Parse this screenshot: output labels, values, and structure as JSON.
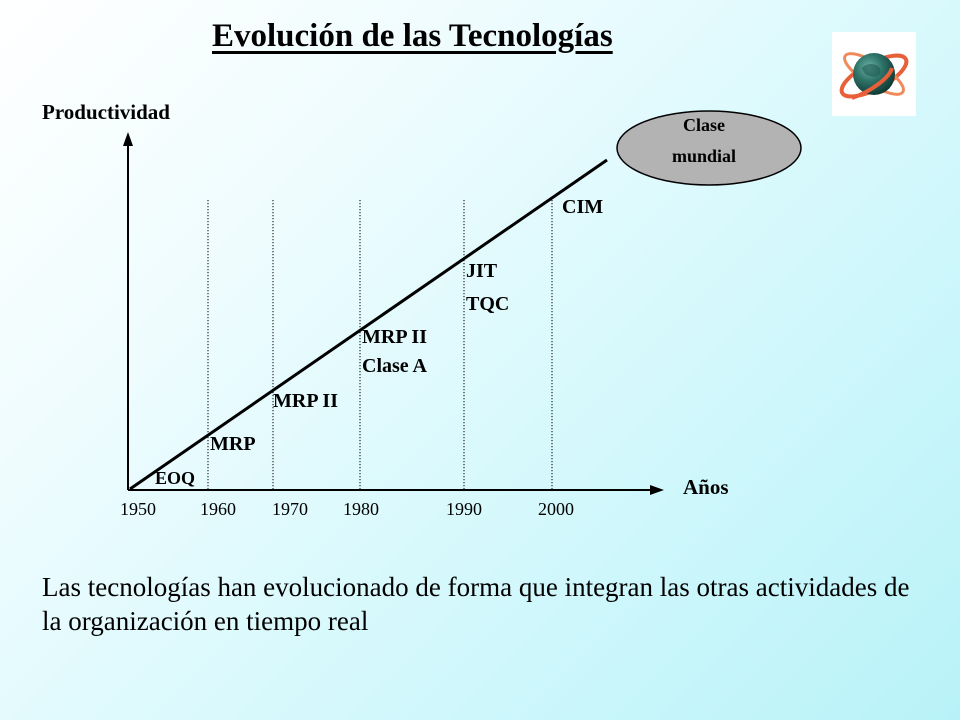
{
  "title": "Evolución de las Tecnologías",
  "logo_icon": "globe-orbit-icon",
  "chart_data": {
    "type": "line",
    "ylabel": "Productividad",
    "xlabel": "Años",
    "x_ticks": [
      "1950",
      "1960",
      "1970",
      "1980",
      "1990",
      "2000"
    ],
    "stages": [
      {
        "lines": [
          "EOQ"
        ]
      },
      {
        "lines": [
          "MRP"
        ]
      },
      {
        "lines": [
          "MRP II"
        ]
      },
      {
        "lines": [
          "MRP II",
          "Clase A"
        ]
      },
      {
        "lines": [
          "JIT",
          "TQC"
        ]
      },
      {
        "lines": [
          "CIM"
        ]
      }
    ],
    "goal": {
      "lines": [
        "Clase",
        "mundial"
      ],
      "color": "#b3b3b3"
    }
  },
  "caption": "Las tecnologías han evolucionado de forma que integran las otras actividades de la organización en tiempo real"
}
